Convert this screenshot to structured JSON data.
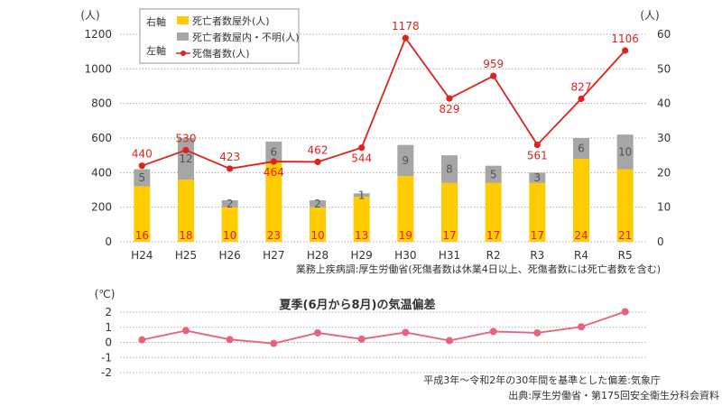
{
  "chart_data": [
    {
      "type": "bar",
      "subtype": "stacked bar + line (dual axis)",
      "categories": [
        "H24",
        "H25",
        "H26",
        "H27",
        "H28",
        "H29",
        "H30",
        "H31",
        "R2",
        "R3",
        "R4",
        "R5"
      ],
      "left_axis": {
        "unit": "(人)",
        "ticks": [
          "1200",
          "1000",
          "800",
          "600",
          "400",
          "200",
          "0"
        ],
        "ylim": [
          0,
          1200
        ]
      },
      "right_axis": {
        "unit": "(人)",
        "ticks": [
          "60",
          "50",
          "40",
          "30",
          "20",
          "10",
          "0"
        ],
        "ylim": [
          0,
          60
        ]
      },
      "legend": {
        "group_right_label": "右軸",
        "group_left_label": "左軸",
        "placement": "top-left",
        "items": [
          {
            "label": "死亡者数屋外(人)",
            "kind": "bar",
            "axis": "right"
          },
          {
            "label": "死亡者数屋内・不明(人)",
            "kind": "bar",
            "axis": "right"
          },
          {
            "label": "死傷者数(人)",
            "kind": "line",
            "axis": "left"
          }
        ]
      },
      "series": [
        {
          "name": "死亡者数屋外(人)",
          "kind": "bar",
          "axis": "right",
          "color": "#ffcc00",
          "values": [
            16,
            18,
            10,
            23,
            10,
            13,
            19,
            17,
            17,
            17,
            24,
            21
          ],
          "labels": [
            "16",
            "18",
            "10",
            "23",
            "10",
            "13",
            "19",
            "17",
            "17",
            "17",
            "24",
            "21"
          ]
        },
        {
          "name": "死亡者数屋内・不明(人)",
          "kind": "bar",
          "axis": "right",
          "color": "#a6a6a6",
          "values": [
            5,
            12,
            2,
            6,
            2,
            1,
            9,
            8,
            5,
            3,
            6,
            10
          ],
          "labels": [
            "5",
            "12",
            "2",
            "6",
            "2",
            "1",
            "9",
            "8",
            "5",
            "3",
            "6",
            "10"
          ]
        },
        {
          "name": "死傷者数(人)",
          "kind": "line",
          "axis": "left",
          "color": "#e0221b",
          "values": [
            440,
            530,
            423,
            464,
            462,
            544,
            1178,
            829,
            959,
            561,
            827,
            1106
          ],
          "labels": [
            "440",
            "530",
            "423",
            "464",
            "462",
            "544",
            "1178",
            "829",
            "959",
            "561",
            "827",
            "1106"
          ]
        }
      ],
      "grid": true,
      "source_note": "業務上疾病調:厚生労働省(死傷者数は休業4日以上、死傷者数には死亡者数を含む)"
    },
    {
      "type": "line",
      "title": "夏季(6月から8月)の気温偏差",
      "unit": "(℃)",
      "ylim": [
        -2,
        2
      ],
      "yticks": [
        "2",
        "1",
        "0",
        "-1",
        "-2"
      ],
      "categories": [
        "H24",
        "H25",
        "H26",
        "H27",
        "H28",
        "H29",
        "H30",
        "H31",
        "R2",
        "R3",
        "R4",
        "R5"
      ],
      "series": [
        {
          "color": "#e8627c",
          "values": [
            0.17,
            0.78,
            0.19,
            -0.07,
            0.63,
            0.22,
            0.66,
            0.12,
            0.72,
            0.63,
            1.03,
            2.03
          ]
        }
      ],
      "grid": true,
      "note": "平成3年〜令和2年の30年間を基準とした偏差:気象庁"
    }
  ],
  "footer": {
    "source": "出典:厚生労働省・第175回安全衛生分科会資料"
  }
}
